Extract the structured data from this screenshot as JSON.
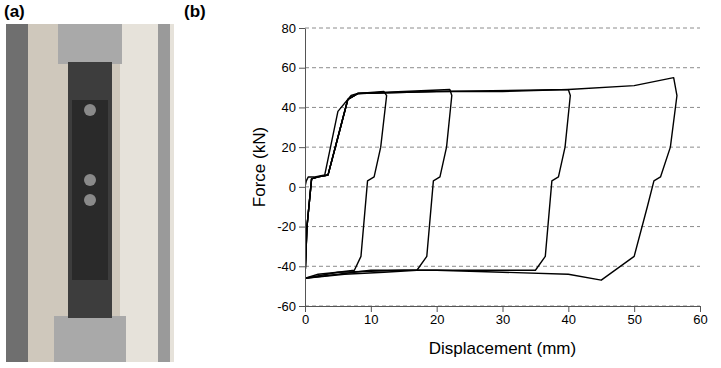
{
  "panel_labels": [
    "(a)",
    "(b)"
  ],
  "chart_data": {
    "type": "line",
    "x_label": "Displacement (mm)",
    "y_label": "Force (kN)",
    "xlim": [
      0,
      60
    ],
    "xticks": [
      0,
      10,
      20,
      30,
      40,
      50,
      60
    ],
    "ylim": [
      -60,
      80
    ],
    "yticks": [
      -60,
      -40,
      -20,
      0,
      20,
      40,
      60,
      80
    ],
    "grid": true,
    "series": [
      {
        "color": "#000000",
        "x": [
          0,
          0.2,
          0.5,
          1.5,
          3,
          5,
          7,
          8
        ],
        "values": [
          0,
          3,
          5,
          5,
          6,
          38,
          46,
          47
        ]
      },
      {
        "color": "#000000",
        "x": [
          0,
          0.3,
          1,
          2,
          3.5,
          5,
          6.5,
          8,
          12,
          12.4,
          11.5,
          10.5,
          9.5,
          8.5,
          7.5,
          5,
          2,
          0
        ],
        "values": [
          -46,
          -20,
          4,
          5,
          6,
          25,
          44,
          47,
          48,
          46,
          20,
          5,
          3,
          -35,
          -42,
          -43,
          -44,
          -46
        ]
      },
      {
        "color": "#000000",
        "x": [
          0,
          0.3,
          1,
          2,
          3.5,
          5,
          6.5,
          8,
          15,
          22,
          22.3,
          21.5,
          20.5,
          19.5,
          18.5,
          17,
          12,
          6,
          0
        ],
        "values": [
          -46,
          -20,
          4,
          5,
          6,
          25,
          44,
          47,
          48,
          49,
          46,
          20,
          5,
          3,
          -35,
          -42,
          -43,
          -44,
          -46
        ]
      },
      {
        "color": "#000000",
        "x": [
          0,
          0.3,
          1,
          2,
          3.5,
          5,
          6.5,
          8,
          20,
          30,
          40,
          40.3,
          39.5,
          38.5,
          37.5,
          36.5,
          35,
          25,
          15,
          5,
          0
        ],
        "values": [
          -46,
          -20,
          4,
          5,
          6,
          25,
          44,
          47,
          48,
          48,
          49,
          46,
          20,
          5,
          3,
          -35,
          -42,
          -42,
          -42,
          -43,
          -46
        ]
      },
      {
        "color": "#000000",
        "x": [
          0,
          0.3,
          1,
          2,
          3.5,
          5,
          6.5,
          8,
          20,
          40,
          50,
          56,
          56.5,
          55.5,
          54,
          53,
          52,
          50,
          45,
          40,
          30,
          20,
          10,
          0
        ],
        "values": [
          -46,
          -20,
          4,
          5,
          6,
          25,
          44,
          47,
          48,
          49,
          51,
          55,
          46,
          20,
          5,
          3,
          -10,
          -35,
          -47,
          -44,
          -43,
          -42,
          -42,
          -46
        ]
      }
    ]
  }
}
